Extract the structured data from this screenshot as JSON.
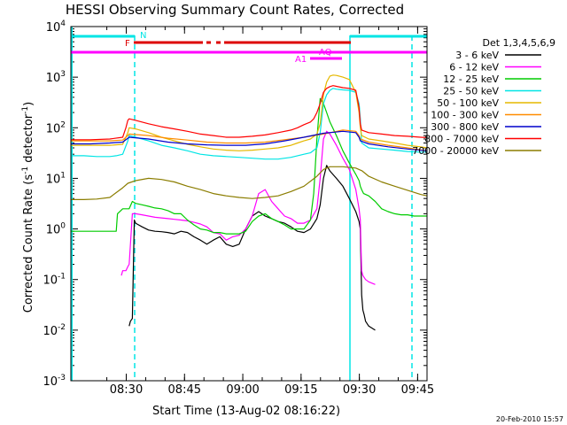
{
  "chart_data": {
    "type": "line",
    "title": "HESSI Observing Summary Count Rates, Corrected",
    "xlabel": "Start Time (13-Aug-02 08:16:22)",
    "ylabel_main": "Corrected Count Rate (s",
    "ylabel_exp1": "-1",
    "ylabel_mid": " detector",
    "ylabel_exp2": "-1",
    "ylabel_end": ")",
    "yscale": "log",
    "xlim": [
      0,
      5500
    ],
    "ylim": [
      0.001,
      10000
    ],
    "x_ticks": [
      {
        "value": 855,
        "label": "08:30"
      },
      {
        "value": 1755,
        "label": "08:45"
      },
      {
        "value": 2655,
        "label": "09:00"
      },
      {
        "value": 3555,
        "label": "09:15"
      },
      {
        "value": 4455,
        "label": "09:30"
      },
      {
        "value": 5355,
        "label": "09:45"
      }
    ],
    "y_ticks": [
      {
        "value": 0.001,
        "base": "10",
        "exp": "-3"
      },
      {
        "value": 0.01,
        "base": "10",
        "exp": "-2"
      },
      {
        "value": 0.1,
        "base": "10",
        "exp": "-1"
      },
      {
        "value": 1,
        "base": "10",
        "exp": "0"
      },
      {
        "value": 10,
        "base": "10",
        "exp": "1"
      },
      {
        "value": 100,
        "base": "10",
        "exp": "2"
      },
      {
        "value": 1000,
        "base": "10",
        "exp": "3"
      },
      {
        "value": 10000,
        "base": "10",
        "exp": "4"
      }
    ],
    "legend_header": "Det 1,3,4,5,6,9",
    "series": [
      {
        "name": "3 - 6 keV",
        "color": "#000000",
        "x": [
          900,
          920,
          950,
          980,
          1000,
          1100,
          1200,
          1300,
          1400,
          1500,
          1600,
          1700,
          1800,
          1900,
          2000,
          2100,
          2200,
          2300,
          2400,
          2500,
          2600,
          2700,
          2800,
          2900,
          3000,
          3100,
          3200,
          3300,
          3400,
          3500,
          3600,
          3700,
          3800,
          3850,
          3900,
          3950,
          4000,
          4100,
          4200,
          4300,
          4400,
          4450,
          4470,
          4490,
          4510,
          4530,
          4550,
          4600,
          4700
        ],
        "y": [
          0.012,
          0.015,
          0.017,
          1.5,
          1.3,
          1.1,
          0.95,
          0.9,
          0.88,
          0.85,
          0.8,
          0.9,
          0.85,
          0.7,
          0.6,
          0.5,
          0.6,
          0.7,
          0.5,
          0.45,
          0.5,
          1.0,
          1.8,
          2.2,
          1.8,
          1.6,
          1.4,
          1.3,
          1.1,
          0.9,
          0.85,
          1.0,
          1.6,
          3,
          10,
          18,
          14,
          10,
          7,
          4,
          2.2,
          1.4,
          1.0,
          0.05,
          0.025,
          0.02,
          0.015,
          0.012,
          0.01
        ]
      },
      {
        "name": "6 - 12 keV",
        "color": "#ff00ff",
        "x": [
          780,
          800,
          850,
          880,
          900,
          950,
          1000,
          1100,
          1200,
          1300,
          1400,
          1500,
          1600,
          1700,
          1800,
          1900,
          2000,
          2100,
          2200,
          2300,
          2400,
          2500,
          2600,
          2700,
          2800,
          2900,
          3000,
          3100,
          3200,
          3300,
          3400,
          3500,
          3600,
          3700,
          3800,
          3850,
          3900,
          3950,
          4000,
          4100,
          4200,
          4300,
          4400,
          4450,
          4470,
          4490,
          4510,
          4550,
          4600,
          4700
        ],
        "y": [
          0.12,
          0.15,
          0.15,
          0.18,
          0.2,
          2.0,
          2.0,
          1.9,
          1.8,
          1.7,
          1.65,
          1.6,
          1.55,
          1.5,
          1.45,
          1.35,
          1.25,
          1.1,
          0.85,
          0.8,
          0.6,
          0.7,
          0.75,
          1.0,
          1.8,
          5,
          6,
          3.5,
          2.5,
          1.8,
          1.6,
          1.3,
          1.3,
          1.5,
          2.5,
          10,
          60,
          85,
          75,
          45,
          25,
          15,
          6,
          2.5,
          1.5,
          0.15,
          0.12,
          0.1,
          0.09,
          0.08
        ]
      },
      {
        "name": "12 - 25 keV",
        "color": "#00cc00",
        "x": [
          0,
          200,
          400,
          600,
          700,
          720,
          800,
          900,
          950,
          1000,
          1100,
          1200,
          1300,
          1400,
          1500,
          1600,
          1700,
          1800,
          1900,
          2000,
          2100,
          2200,
          2300,
          2400,
          2500,
          2600,
          2700,
          2800,
          2900,
          3000,
          3100,
          3200,
          3300,
          3400,
          3500,
          3600,
          3700,
          3750,
          3800,
          3850,
          3900,
          3950,
          4000,
          4100,
          4200,
          4300,
          4400,
          4450,
          4470,
          4490,
          4520,
          4600,
          4700,
          4800,
          4900,
          5000,
          5100,
          5200,
          5300,
          5400,
          5500
        ],
        "y": [
          0.9,
          0.9,
          0.9,
          0.9,
          0.9,
          2.0,
          2.5,
          2.5,
          3.5,
          3.2,
          3.0,
          2.8,
          2.6,
          2.5,
          2.3,
          2.0,
          2.0,
          1.5,
          1.2,
          1.0,
          0.95,
          0.85,
          0.85,
          0.8,
          0.8,
          0.8,
          0.9,
          1.4,
          1.8,
          2.0,
          1.6,
          1.4,
          1.2,
          1.0,
          1.0,
          1.0,
          1.5,
          5,
          60,
          380,
          300,
          200,
          130,
          70,
          35,
          20,
          12,
          9,
          7,
          6,
          5,
          4.5,
          3.5,
          2.5,
          2.2,
          2.0,
          1.9,
          1.9,
          1.8,
          1.8,
          1.8
        ]
      },
      {
        "name": "25 - 50 keV",
        "color": "#00e5e5",
        "x": [
          0,
          200,
          400,
          600,
          700,
          800,
          880,
          900,
          1000,
          1200,
          1400,
          1600,
          1800,
          2000,
          2200,
          2400,
          2600,
          2800,
          3000,
          3200,
          3400,
          3500,
          3600,
          3700,
          3800,
          3850,
          3900,
          3950,
          4000,
          4050,
          4100,
          4200,
          4300,
          4400,
          4450,
          4470,
          4490,
          4600,
          4800,
          5000,
          5200,
          5400,
          5500
        ],
        "y": [
          28,
          28,
          27,
          27,
          28,
          30,
          55,
          70,
          65,
          55,
          45,
          40,
          35,
          30,
          28,
          27,
          26,
          25,
          24,
          24,
          26,
          28,
          30,
          32,
          40,
          80,
          300,
          450,
          550,
          600,
          580,
          560,
          550,
          500,
          300,
          150,
          50,
          40,
          38,
          36,
          34,
          33,
          33
        ]
      },
      {
        "name": "50 - 100 keV",
        "color": "#e5b800",
        "x": [
          0,
          300,
          600,
          800,
          880,
          900,
          1000,
          1200,
          1400,
          1600,
          1800,
          2000,
          2200,
          2400,
          2600,
          2800,
          3000,
          3200,
          3400,
          3500,
          3600,
          3700,
          3800,
          3850,
          3900,
          3950,
          4000,
          4050,
          4100,
          4200,
          4300,
          4400,
          4450,
          4470,
          4490,
          4600,
          4800,
          5000,
          5200,
          5400,
          5500
        ],
        "y": [
          45,
          45,
          45,
          47,
          80,
          100,
          95,
          80,
          65,
          55,
          47,
          42,
          38,
          36,
          35,
          36,
          38,
          40,
          45,
          50,
          55,
          60,
          75,
          120,
          450,
          800,
          1050,
          1100,
          1080,
          1000,
          900,
          500,
          200,
          100,
          70,
          60,
          55,
          50,
          45,
          42,
          40
        ]
      },
      {
        "name": "100 - 300 keV",
        "color": "#ff8c00",
        "x": [
          0,
          300,
          600,
          800,
          880,
          900,
          1200,
          1500,
          1800,
          2100,
          2400,
          2700,
          3000,
          3300,
          3600,
          3900,
          4200,
          4400,
          4450,
          4470,
          4600,
          4900,
          5200,
          5500
        ],
        "y": [
          55,
          55,
          55,
          57,
          70,
          75,
          70,
          62,
          57,
          52,
          50,
          50,
          52,
          58,
          65,
          75,
          90,
          85,
          70,
          60,
          52,
          45,
          40,
          35
        ]
      },
      {
        "name": "300 - 800 keV",
        "color": "#0000cc",
        "x": [
          0,
          300,
          600,
          800,
          880,
          900,
          1200,
          1500,
          1800,
          2100,
          2400,
          2700,
          3000,
          3300,
          3600,
          3900,
          4200,
          4400,
          4450,
          4470,
          4600,
          4900,
          5200,
          5500
        ],
        "y": [
          48,
          48,
          50,
          52,
          62,
          65,
          60,
          52,
          48,
          46,
          45,
          45,
          48,
          55,
          65,
          78,
          85,
          80,
          65,
          55,
          48,
          42,
          38,
          35
        ]
      },
      {
        "name": "800 - 7000 keV",
        "color": "#ff0000",
        "x": [
          0,
          300,
          600,
          800,
          850,
          880,
          900,
          1000,
          1200,
          1400,
          1600,
          1800,
          2000,
          2200,
          2400,
          2600,
          2800,
          3000,
          3200,
          3400,
          3500,
          3600,
          3700,
          3750,
          3800,
          3850,
          3900,
          3950,
          4000,
          4050,
          4100,
          4200,
          4300,
          4400,
          4450,
          4470,
          4490,
          4600,
          4800,
          5000,
          5200,
          5400,
          5500
        ],
        "y": [
          58,
          58,
          60,
          65,
          100,
          140,
          150,
          140,
          120,
          105,
          95,
          85,
          75,
          70,
          65,
          65,
          68,
          72,
          80,
          90,
          100,
          115,
          130,
          150,
          200,
          300,
          500,
          600,
          650,
          680,
          660,
          620,
          600,
          550,
          250,
          120,
          90,
          80,
          75,
          70,
          68,
          65,
          64
        ]
      },
      {
        "name": "7000 - 20000 keV",
        "color": "#8b7d00",
        "x": [
          0,
          200,
          400,
          600,
          800,
          880,
          1000,
          1200,
          1400,
          1600,
          1800,
          2000,
          2200,
          2400,
          2600,
          2800,
          3000,
          3200,
          3400,
          3600,
          3800,
          3900,
          4000,
          4200,
          4400,
          4500,
          4600,
          4800,
          5000,
          5200,
          5400,
          5500
        ],
        "y": [
          3.8,
          3.8,
          3.9,
          4.2,
          6.5,
          8.0,
          9.0,
          10.0,
          9.5,
          8.5,
          7.0,
          6.0,
          5.0,
          4.5,
          4.2,
          4.0,
          4.2,
          4.5,
          5.5,
          7.0,
          11,
          15,
          17,
          17,
          16,
          14,
          11,
          8.5,
          7.0,
          5.8,
          4.8,
          4.5
        ]
      }
    ],
    "annotations": {
      "N": "N",
      "F": "F",
      "AQ": "AQ",
      "A1": "A1"
    }
  },
  "footer": {
    "date_stamp": "20-Feb-2010 15:57"
  }
}
